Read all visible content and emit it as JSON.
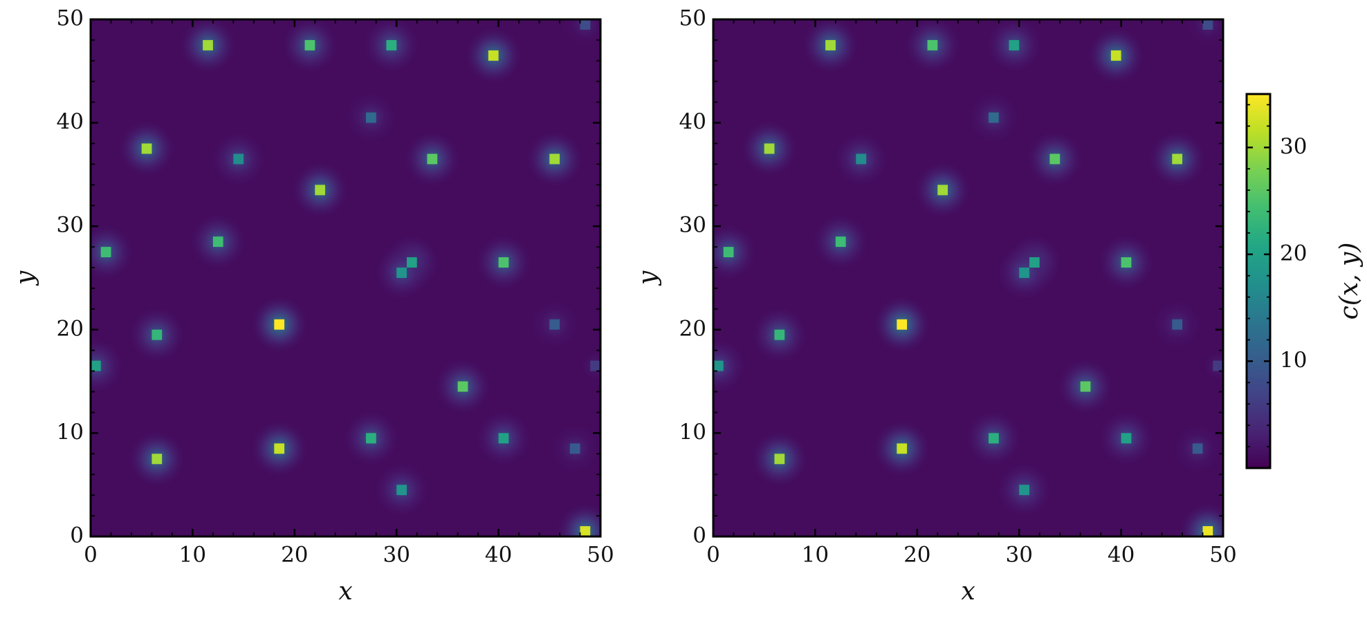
{
  "chart_data": [
    {
      "type": "heatmap",
      "xlabel": "x",
      "ylabel": "y",
      "xlim": [
        0,
        50
      ],
      "ylim": [
        0,
        50
      ],
      "xticks": [
        0,
        10,
        20,
        30,
        40,
        50
      ],
      "yticks": [
        0,
        10,
        20,
        30,
        40,
        50
      ],
      "minor_ticks": true,
      "colormap": "viridis",
      "clim": [
        0,
        35
      ],
      "background_value": 1,
      "cells": {
        "x": [
          11,
          21,
          29,
          39,
          48,
          27,
          5,
          14,
          33,
          45,
          22,
          12,
          1,
          31,
          30,
          40,
          6,
          18,
          45,
          0,
          49,
          36,
          6,
          18,
          27,
          40,
          47,
          30,
          48
        ],
        "y": [
          47,
          47,
          47,
          46,
          49,
          40,
          37,
          36,
          36,
          36,
          33,
          28,
          27,
          26,
          25,
          26,
          19,
          20,
          20,
          16,
          16,
          14,
          7,
          8,
          9,
          9,
          8,
          4,
          0
        ],
        "values": [
          30,
          25,
          22,
          32,
          8,
          12,
          30,
          17,
          26,
          30,
          30,
          24,
          24,
          20,
          18,
          25,
          23,
          35,
          10,
          20,
          6,
          26,
          30,
          32,
          22,
          20,
          10,
          18,
          33
        ]
      }
    },
    {
      "type": "heatmap",
      "xlabel": "x",
      "ylabel": "y",
      "xlim": [
        0,
        50
      ],
      "ylim": [
        0,
        50
      ],
      "xticks": [
        0,
        10,
        20,
        30,
        40,
        50
      ],
      "yticks": [
        0,
        10,
        20,
        30,
        40,
        50
      ],
      "minor_ticks": true,
      "colormap": "viridis",
      "clim": [
        0,
        35
      ],
      "background_value": 1,
      "cells": {
        "x": [
          11,
          21,
          29,
          39,
          48,
          27,
          5,
          14,
          33,
          45,
          22,
          12,
          1,
          31,
          30,
          40,
          6,
          18,
          45,
          0,
          49,
          36,
          6,
          18,
          27,
          40,
          47,
          30,
          48
        ],
        "y": [
          47,
          47,
          47,
          46,
          49,
          40,
          37,
          36,
          36,
          36,
          33,
          28,
          27,
          26,
          25,
          26,
          19,
          20,
          20,
          16,
          16,
          14,
          7,
          8,
          9,
          9,
          8,
          4,
          0
        ],
        "values": [
          30,
          25,
          20,
          32,
          8,
          12,
          30,
          17,
          26,
          30,
          30,
          24,
          24,
          20,
          18,
          25,
          23,
          35,
          10,
          18,
          6,
          26,
          30,
          32,
          22,
          20,
          10,
          18,
          34
        ]
      },
      "colorbar": {
        "label": "c(x, y)",
        "ticks": [
          10,
          20,
          30
        ]
      }
    }
  ]
}
